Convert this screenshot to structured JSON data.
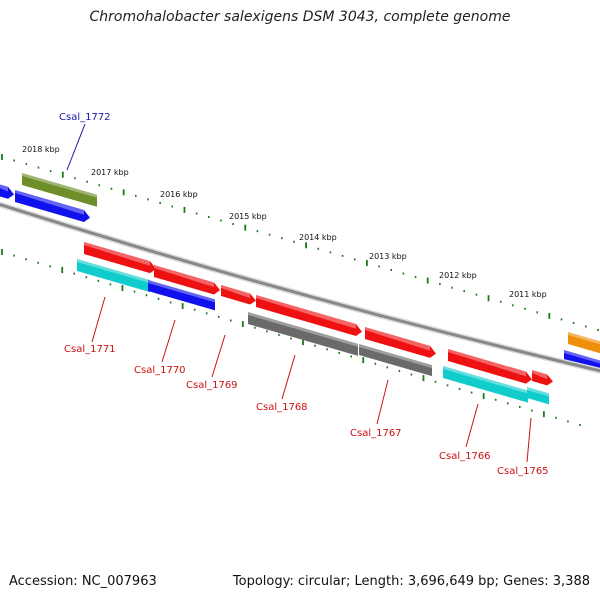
{
  "title": "Chromohalobacter salexigens DSM 3043, complete genome",
  "footer": {
    "accession": "Accession: NC_007963",
    "summary": "Topology: circular; Length: 3,696,649 bp; Genes: 3,388"
  },
  "colors": {
    "backbone": "#888888",
    "tick": "#1a7a1a",
    "label_blue": "#1a1aa8",
    "label_red": "#cc1111",
    "red": "#ee1111",
    "blue": "#1111ee",
    "cyan": "#11cccc",
    "gray": "#6a6a6a",
    "olive": "#6e8e2a",
    "orange": "#f0900a"
  },
  "tick_labels": [
    {
      "label": "2018 kbp"
    },
    {
      "label": "2017 kbp"
    },
    {
      "label": "2016 kbp"
    },
    {
      "label": "2015 kbp"
    },
    {
      "label": "2014 kbp"
    },
    {
      "label": "2013 kbp"
    },
    {
      "label": "2012 kbp"
    },
    {
      "label": "2011 kbp"
    }
  ],
  "gene_labels": [
    {
      "label": "Csal_1772",
      "color": "blue"
    },
    {
      "label": "Csal_1771",
      "color": "red"
    },
    {
      "label": "Csal_1770",
      "color": "red"
    },
    {
      "label": "Csal_1769",
      "color": "red"
    },
    {
      "label": "Csal_1768",
      "color": "red"
    },
    {
      "label": "Csal_1767",
      "color": "red"
    },
    {
      "label": "Csal_1766",
      "color": "red"
    },
    {
      "label": "Csal_1765",
      "color": "red"
    }
  ]
}
